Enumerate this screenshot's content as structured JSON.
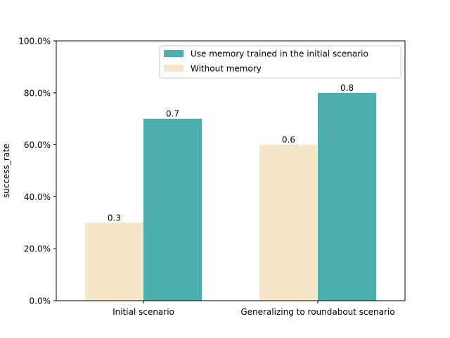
{
  "chart_data": {
    "type": "bar",
    "title": "",
    "xlabel": "",
    "ylabel": "success_rate",
    "ylim": [
      0,
      1
    ],
    "y_tick_format": "percent_1dp",
    "y_ticks": [
      0,
      0.2,
      0.4,
      0.6,
      0.8,
      1.0
    ],
    "y_tick_labels": [
      "0.0%",
      "20.0%",
      "40.0%",
      "60.0%",
      "80.0%",
      "100.0%"
    ],
    "categories": [
      "Initial scenario",
      "Generalizing to roundabout scenario"
    ],
    "series": [
      {
        "name": "Without memory",
        "values": [
          0.3,
          0.6
        ],
        "color": "#f5e6c8",
        "data_labels": [
          "0.3",
          "0.6"
        ]
      },
      {
        "name": "Use memory trained in the initial scenario",
        "values": [
          0.7,
          0.8
        ],
        "color": "#4daeae",
        "data_labels": [
          "0.7",
          "0.8"
        ]
      }
    ],
    "legend": {
      "placement": "upper-right",
      "order": [
        "Use memory trained in the initial scenario",
        "Without memory"
      ]
    },
    "grid": false
  }
}
